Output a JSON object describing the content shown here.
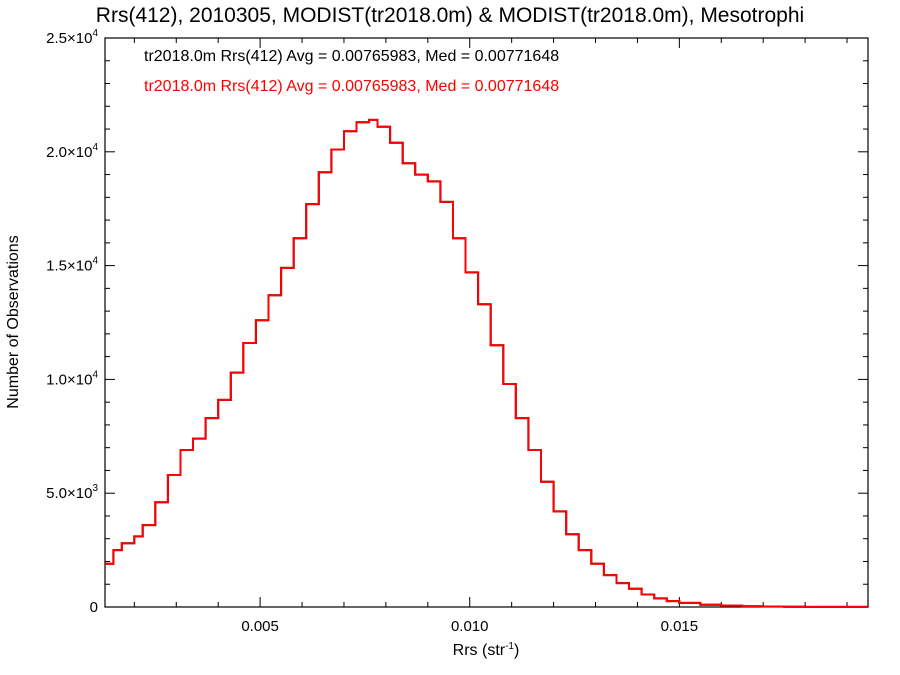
{
  "chart_data": {
    "type": "line",
    "title": "Rrs(412), 2010305, MODIST(tr2018.0m) & MODIST(tr2018.0m), Mesotrophi",
    "xlabel": "Rrs (str",
    "xlabel_sup": "-1",
    "xlabel_close": ")",
    "ylabel": "Number of Observations",
    "xlim": [
      0.0013,
      0.0195
    ],
    "ylim": [
      0,
      25000
    ],
    "grid": false,
    "x_ticks": [
      {
        "value": 0.005,
        "label": "0.005"
      },
      {
        "value": 0.01,
        "label": "0.010"
      },
      {
        "value": 0.015,
        "label": "0.015"
      }
    ],
    "y_ticks": [
      {
        "value": 0,
        "mant": "0",
        "exp": ""
      },
      {
        "value": 5000,
        "mant": "5.0×10",
        "exp": "3"
      },
      {
        "value": 10000,
        "mant": "1.0×10",
        "exp": "4"
      },
      {
        "value": 15000,
        "mant": "1.5×10",
        "exp": "4"
      },
      {
        "value": 20000,
        "mant": "2.0×10",
        "exp": "4"
      },
      {
        "value": 25000,
        "mant": "2.5×10",
        "exp": "4"
      }
    ],
    "legend_position": "top-left",
    "series": [
      {
        "name": "tr2018.0m Rrs(412) Avg = 0.00765983, Med = 0.00771648",
        "color": "#000000",
        "x": [
          0.0013,
          0.0015,
          0.0017,
          0.002,
          0.0022,
          0.0025,
          0.0028,
          0.0031,
          0.0034,
          0.0037,
          0.004,
          0.0043,
          0.0046,
          0.0049,
          0.0052,
          0.0055,
          0.0058,
          0.0061,
          0.0064,
          0.0067,
          0.007,
          0.0073,
          0.0076,
          0.0078,
          0.0081,
          0.0084,
          0.0087,
          0.009,
          0.0093,
          0.0096,
          0.0099,
          0.0102,
          0.0105,
          0.0108,
          0.0111,
          0.0114,
          0.0117,
          0.012,
          0.0123,
          0.0126,
          0.0129,
          0.0132,
          0.0135,
          0.0138,
          0.0141,
          0.0144,
          0.0147,
          0.015,
          0.0155,
          0.016,
          0.0165,
          0.017,
          0.0175,
          0.018,
          0.0185,
          0.0195
        ],
        "y": [
          1900,
          2500,
          2800,
          3100,
          3600,
          4600,
          5800,
          6900,
          7400,
          8300,
          9100,
          10300,
          11600,
          12600,
          13700,
          14900,
          16200,
          17700,
          19100,
          20100,
          20900,
          21300,
          21400,
          21100,
          20400,
          19500,
          19000,
          18700,
          17800,
          16200,
          14700,
          13300,
          11500,
          9800,
          8300,
          6900,
          5500,
          4200,
          3200,
          2500,
          1900,
          1400,
          1050,
          800,
          550,
          380,
          260,
          180,
          100,
          60,
          35,
          20,
          10,
          5,
          3,
          0
        ]
      },
      {
        "name": "tr2018.0m Rrs(412) Avg = 0.00765983, Med = 0.00771648",
        "color": "#ff0000",
        "x": [
          0.0013,
          0.0015,
          0.0017,
          0.002,
          0.0022,
          0.0025,
          0.0028,
          0.0031,
          0.0034,
          0.0037,
          0.004,
          0.0043,
          0.0046,
          0.0049,
          0.0052,
          0.0055,
          0.0058,
          0.0061,
          0.0064,
          0.0067,
          0.007,
          0.0073,
          0.0076,
          0.0078,
          0.0081,
          0.0084,
          0.0087,
          0.009,
          0.0093,
          0.0096,
          0.0099,
          0.0102,
          0.0105,
          0.0108,
          0.0111,
          0.0114,
          0.0117,
          0.012,
          0.0123,
          0.0126,
          0.0129,
          0.0132,
          0.0135,
          0.0138,
          0.0141,
          0.0144,
          0.0147,
          0.015,
          0.0155,
          0.016,
          0.0165,
          0.017,
          0.0175,
          0.018,
          0.0185,
          0.0195
        ],
        "y": [
          1900,
          2500,
          2800,
          3100,
          3600,
          4600,
          5800,
          6900,
          7400,
          8300,
          9100,
          10300,
          11600,
          12600,
          13700,
          14900,
          16200,
          17700,
          19100,
          20100,
          20900,
          21300,
          21400,
          21100,
          20400,
          19500,
          19000,
          18700,
          17800,
          16200,
          14700,
          13300,
          11500,
          9800,
          8300,
          6900,
          5500,
          4200,
          3200,
          2500,
          1900,
          1400,
          1050,
          800,
          550,
          380,
          260,
          180,
          100,
          60,
          35,
          20,
          10,
          5,
          3,
          0
        ]
      }
    ]
  }
}
